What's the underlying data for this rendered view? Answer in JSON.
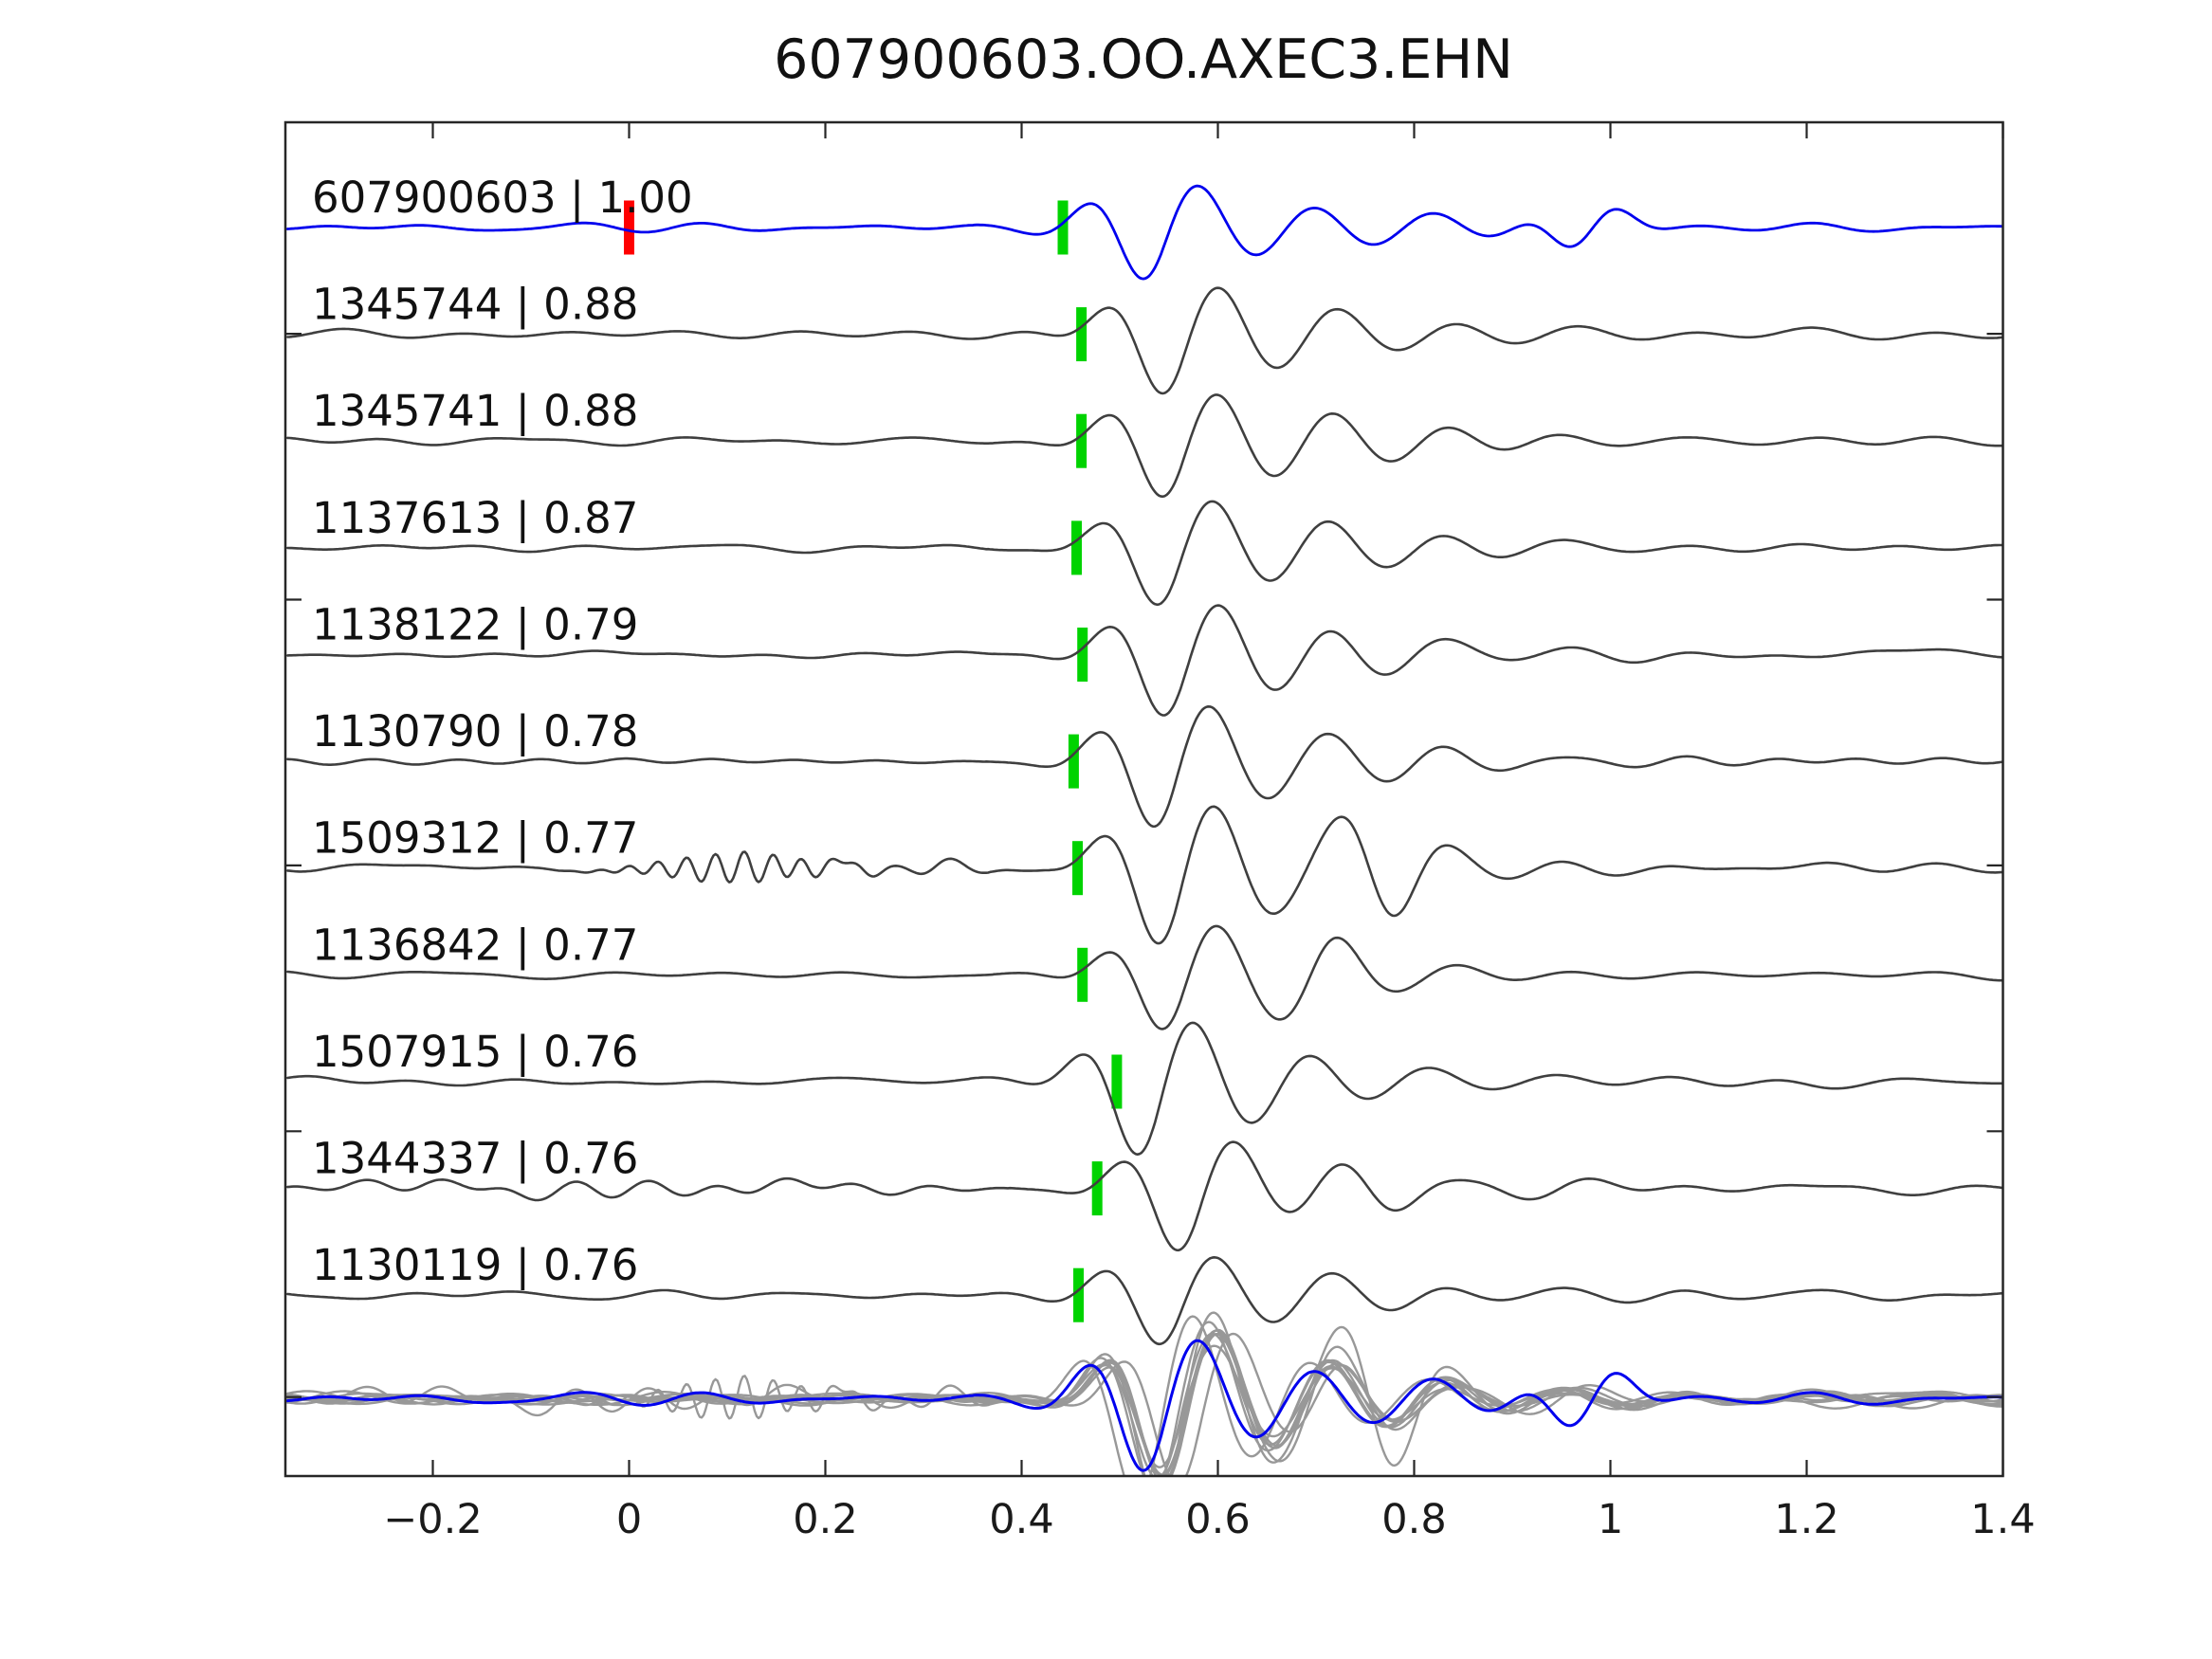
{
  "title": "607900603.OO.AXEC3.EHN",
  "colors": {
    "background": "#ffffff",
    "axis": "#262626",
    "text": "#111111",
    "reference_trace": "#0000ee",
    "candidate_trace": "#3f3f3f",
    "overlay_trace": "#989898",
    "pick_marker": "#00d300",
    "origin_marker": "#ff0000"
  },
  "axes": {
    "x_tick_values": [
      -0.2,
      0,
      0.2,
      0.4,
      0.6,
      0.8,
      1,
      1.2,
      1.4
    ],
    "x_tick_labels": [
      "−0.2",
      "0",
      "0.2",
      "0.4",
      "0.6",
      "0.8",
      "1",
      "1.2",
      "1.4"
    ],
    "xlim": [
      -0.348,
      1.4
    ]
  },
  "chart_data": {
    "type": "line",
    "title": "607900603.OO.AXEC3.EHN",
    "xlabel": "",
    "ylabel": "",
    "grid": false,
    "legend_position": "none",
    "xlim": [
      -0.348,
      1.4
    ],
    "x_ticks": [
      -0.2,
      0,
      0.2,
      0.4,
      0.6,
      0.8,
      1,
      1.2,
      1.4
    ],
    "description": "Stacked seismic waveform rows: blue reference template on top, ten matched gray traces below (id | correlation), green bars mark phase picks, red bar marks time 0 on the reference, bottom row overlays all traces (gray) with the blue reference.",
    "reference_id": "607900603",
    "origin_marker_time": 0.0,
    "traces": [
      {
        "id": "607900603",
        "correlation": 1.0,
        "label": "607900603 | 1.00",
        "role": "reference",
        "pick_time": 0.442,
        "waveform": {
          "onset_time": 0.442,
          "amp": 62,
          "noise_amp": 4.5,
          "noise_seed": 11,
          "bursts": [
            {
              "center": 0.98,
              "width": 0.055,
              "freq": 8,
              "amp": 30,
              "phase": 0
            }
          ]
        }
      },
      {
        "id": "1345744",
        "correlation": 0.88,
        "label": "1345744 | 0.88",
        "role": "match",
        "pick_time": 0.461,
        "waveform": {
          "onset_time": 0.461,
          "amp": 64,
          "noise_amp": 4.5,
          "noise_seed": 22,
          "bursts": []
        }
      },
      {
        "id": "1345741",
        "correlation": 0.88,
        "label": "1345741 | 0.88",
        "role": "match",
        "pick_time": 0.461,
        "waveform": {
          "onset_time": 0.461,
          "amp": 64,
          "noise_amp": 4.5,
          "noise_seed": 33,
          "bursts": []
        }
      },
      {
        "id": "1137613",
        "correlation": 0.87,
        "label": "1137613 | 0.87",
        "role": "match",
        "pick_time": 0.456,
        "waveform": {
          "onset_time": 0.456,
          "amp": 63,
          "noise_amp": 4.0,
          "noise_seed": 44,
          "bursts": []
        }
      },
      {
        "id": "1138122",
        "correlation": 0.79,
        "label": "1138122 | 0.79",
        "role": "match",
        "pick_time": 0.462,
        "waveform": {
          "onset_time": 0.462,
          "amp": 66,
          "noise_amp": 5.0,
          "noise_seed": 55,
          "bursts": [
            {
              "center": 0.78,
              "width": 0.09,
              "freq": 7,
              "amp": 12,
              "phase": 0
            }
          ]
        }
      },
      {
        "id": "1130790",
        "correlation": 0.78,
        "label": "1130790 | 0.78",
        "role": "match",
        "pick_time": 0.453,
        "waveform": {
          "onset_time": 0.453,
          "amp": 72,
          "noise_amp": 4.5,
          "noise_seed": 66,
          "bursts": []
        }
      },
      {
        "id": "1509312",
        "correlation": 0.77,
        "label": "1509312 | 0.77",
        "role": "match",
        "pick_time": 0.457,
        "waveform": {
          "onset_time": 0.457,
          "amp": 84,
          "noise_amp": 5.0,
          "noise_seed": 77,
          "bursts": [
            {
              "center": 0.11,
              "width": 0.09,
              "freq": 34,
              "amp": 16,
              "phase": 0
            },
            {
              "center": 0.27,
              "width": 0.1,
              "freq": 18,
              "amp": 7,
              "phase": 1.2
            },
            {
              "center": 0.76,
              "width": 0.06,
              "freq": 9,
              "amp": 36,
              "phase": 3.3
            }
          ]
        }
      },
      {
        "id": "1136842",
        "correlation": 0.77,
        "label": "1136842 | 0.77",
        "role": "match",
        "pick_time": 0.462,
        "waveform": {
          "onset_time": 0.462,
          "amp": 66,
          "noise_amp": 4.5,
          "noise_seed": 88,
          "bursts": [
            {
              "center": 0.7,
              "width": 0.05,
              "freq": 9,
              "amp": 14,
              "phase": 0
            }
          ]
        }
      },
      {
        "id": "1507915",
        "correlation": 0.76,
        "label": "1507915 | 0.76",
        "role": "match",
        "pick_time": 0.497,
        "waveform": {
          "onset_time": 0.437,
          "amp": 76,
          "noise_amp": 5.5,
          "noise_seed": 99,
          "bursts": []
        }
      },
      {
        "id": "1344337",
        "correlation": 0.76,
        "label": "1344337 | 0.76",
        "role": "match",
        "pick_time": 0.477,
        "waveform": {
          "onset_time": 0.477,
          "amp": 66,
          "noise_amp": 8.0,
          "noise_seed": 110,
          "bursts": [
            {
              "center": 0.0,
              "width": 0.3,
              "freq": 14,
              "amp": 7,
              "phase": 0
            },
            {
              "center": 0.79,
              "width": 0.07,
              "freq": 8,
              "amp": 20,
              "phase": 0
            }
          ]
        }
      },
      {
        "id": "1130119",
        "correlation": 0.76,
        "label": "1130119 | 0.76",
        "role": "match",
        "pick_time": 0.458,
        "waveform": {
          "onset_time": 0.458,
          "amp": 56,
          "noise_amp": 5.0,
          "noise_seed": 121,
          "bursts": []
        }
      }
    ],
    "overlay_row": {
      "content": "all 11 traces superimposed, gray matches behind blue reference",
      "amplitude_scale": 1.4
    }
  }
}
